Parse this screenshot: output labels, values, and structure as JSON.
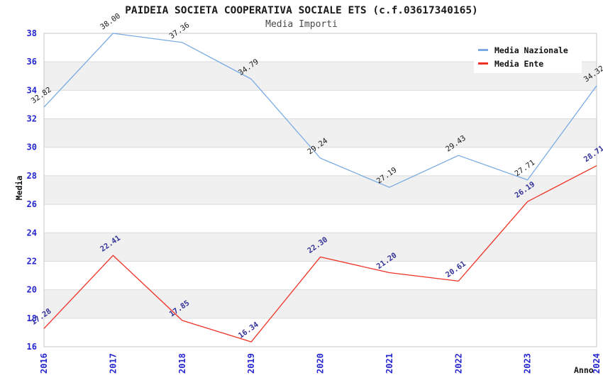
{
  "chart_data": {
    "type": "line",
    "title": "PAIDEIA SOCIETA COOPERATIVA SOCIALE ETS (c.f.03617340165)",
    "subtitle": "Media Importi",
    "xlabel": "Anno",
    "ylabel": "Media",
    "x": [
      "2016",
      "2017",
      "2018",
      "2019",
      "2020",
      "2021",
      "2022",
      "2023",
      "2024"
    ],
    "series": [
      {
        "name": "Media Nazionale",
        "color": "#79ABE2",
        "label_color": "#1a1a1a",
        "values": [
          32.82,
          38.0,
          37.36,
          34.79,
          29.24,
          27.19,
          29.43,
          27.71,
          34.32
        ]
      },
      {
        "name": "Media Ente",
        "color": "#EE3124",
        "label_color": "#333399",
        "values": [
          17.28,
          22.41,
          17.85,
          16.34,
          22.3,
          21.2,
          20.61,
          26.19,
          28.71
        ]
      }
    ],
    "ylim": [
      16,
      38
    ],
    "ytick_step": 2,
    "y_ticks": [
      16,
      18,
      20,
      22,
      24,
      26,
      28,
      30,
      32,
      34,
      36,
      38
    ],
    "grid": true,
    "legend_position": "top-right"
  },
  "theme": {
    "tick_color": "#2626CE",
    "grid_color": "#dcdcdc",
    "frame_color": "#c6c6c6",
    "band_colors": [
      "#ffffff",
      "#f0f0f0"
    ],
    "background": "#ffffff"
  }
}
